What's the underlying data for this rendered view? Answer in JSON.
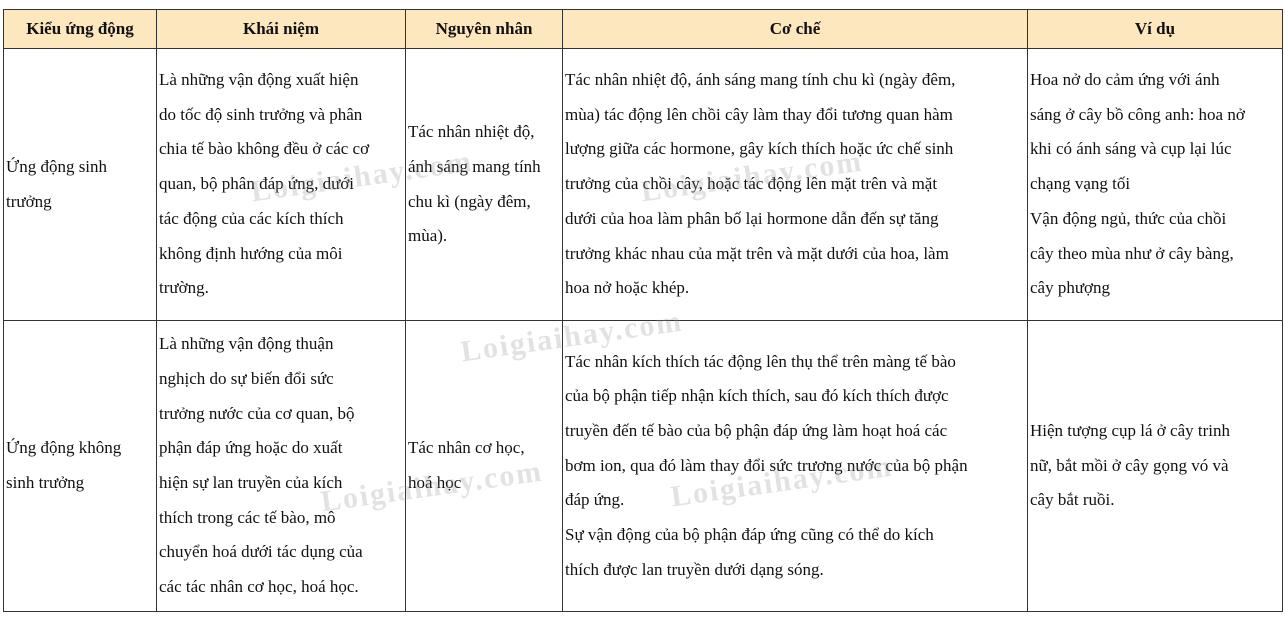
{
  "table": {
    "headers": [
      "Kiểu ứng động",
      "Khái niệm",
      "Nguyên nhân",
      "Cơ chế",
      "Ví dụ"
    ],
    "rows": [
      {
        "type": "Ứng động sinh\ntrưởng",
        "concept": "Là những vận động xuất hiện\ndo tốc độ sinh trưởng và phân\nchia tế bào không đều ở các cơ\nquan, bộ phân đáp ứng, dưới\ntác động của các kích thích\nkhông định hướng của môi\ntrường.",
        "cause": "Tác nhân nhiệt độ,\nánh sáng mang tính\nchu kì (ngày đêm,\nmùa).",
        "mechanism": "Tác nhân nhiệt độ, ánh sáng mang tính chu kì (ngày đêm,\nmùa) tác động lên chồi cây làm thay đổi tương quan hàm\nlượng giữa các hormone, gây kích thích hoặc ức chế sinh\ntrưởng của chồi cây, hoặc tác động lên mặt trên và mặt\ndưới của hoa làm phân bố lại hormone dẫn đến sự tăng\ntrưởng khác nhau của mặt trên và mặt dưới của hoa, làm\nhoa nở hoặc khép.",
        "example": "Hoa nở do cảm ứng với ánh\nsáng ở cây bồ công anh: hoa nở\nkhi có ánh sáng và cụp lại lúc\nchạng vạng tối\nVận động ngủ, thức của chồi\ncây theo mùa như ở cây bàng,\ncây phượng"
      },
      {
        "type": "Ứng động không\nsinh trưởng",
        "concept": "Là những vận động thuận\nnghịch do sự biến đổi sức\ntrưởng nước của cơ quan, bộ\nphận đáp ứng hoặc do xuất\nhiện sự lan truyền của kích\nthích trong các tế bào, mô\nchuyển hoá dưới tác dụng của\ncác tác nhân cơ học, hoá học.",
        "cause": "Tác nhân cơ học,\nhoá học",
        "mechanism": "Tác nhân kích thích tác động lên thụ thể trên màng tế bào\ncủa bộ phận tiếp nhận kích thích, sau đó kích thích được\ntruyền đến tế bào của bộ phận đáp ứng làm hoạt hoá các\nbơm ion, qua đó làm thay đổi sức trương nước của bộ phận\nđáp ứng.\nSự vận động của bộ phận đáp ứng cũng có thể do kích\nthích được lan truyền dưới dạng sóng.\n",
        "example": "Hiện tượng cụp lá ở cây trinh\nnữ, bắt mồi ở cây gọng vó và\ncây bắt ruồi."
      }
    ],
    "header_color": "#fce7be"
  },
  "watermark": "Loigiaihay.com"
}
